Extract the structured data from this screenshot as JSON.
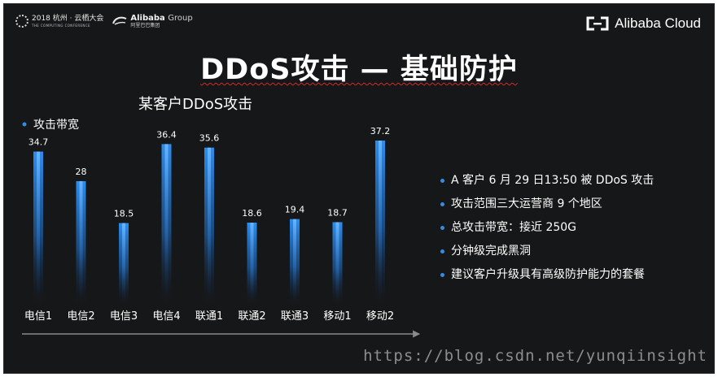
{
  "header": {
    "conference_line": "2018 杭州 · 云栖大会",
    "conference_sub": "THE COMPUTING CONFERENCE",
    "group_name": "Alibaba",
    "group_suffix": "Group",
    "group_cn": "阿里巴巴集团",
    "cloud_brand": "Alibaba Cloud"
  },
  "slide_title": "DDoS攻击 — 基础防护",
  "bullets": [
    "A 客户 6 月 29 日13:50 被 DDoS 攻击",
    "攻击范围三大运营商 9 个地区",
    "总攻击带宽：接近 250G",
    "分钟级完成黑洞",
    "建议客户升级具有高级防护能力的套餐"
  ],
  "watermark": "https://blog.csdn.net/yunqiinsight",
  "colors": {
    "background": "#161718",
    "bar_glow": "#2c8ef0",
    "bullet_dot": "#2f8de6"
  },
  "icons": [
    "conference-logo-icon",
    "alibaba-group-logo-icon",
    "alibaba-cloud-logo-icon"
  ],
  "chart_data": {
    "type": "bar",
    "title": "某客户DDoS攻击",
    "legend": [
      "攻击带宽"
    ],
    "categories": [
      "电信1",
      "电信2",
      "电信3",
      "电信4",
      "联通1",
      "联通2",
      "联通3",
      "移动1",
      "移动2"
    ],
    "values": [
      34.7,
      28,
      18.5,
      36.4,
      35.6,
      18.6,
      19.4,
      18.7,
      37.2
    ],
    "value_labels": [
      "34.7",
      "28",
      "18.5",
      "36.4",
      "35.6",
      "18.6",
      "19.4",
      "18.7",
      "37.2"
    ],
    "ylim": [
      0,
      37.2
    ],
    "grid": false,
    "legend_position": "top-left"
  }
}
